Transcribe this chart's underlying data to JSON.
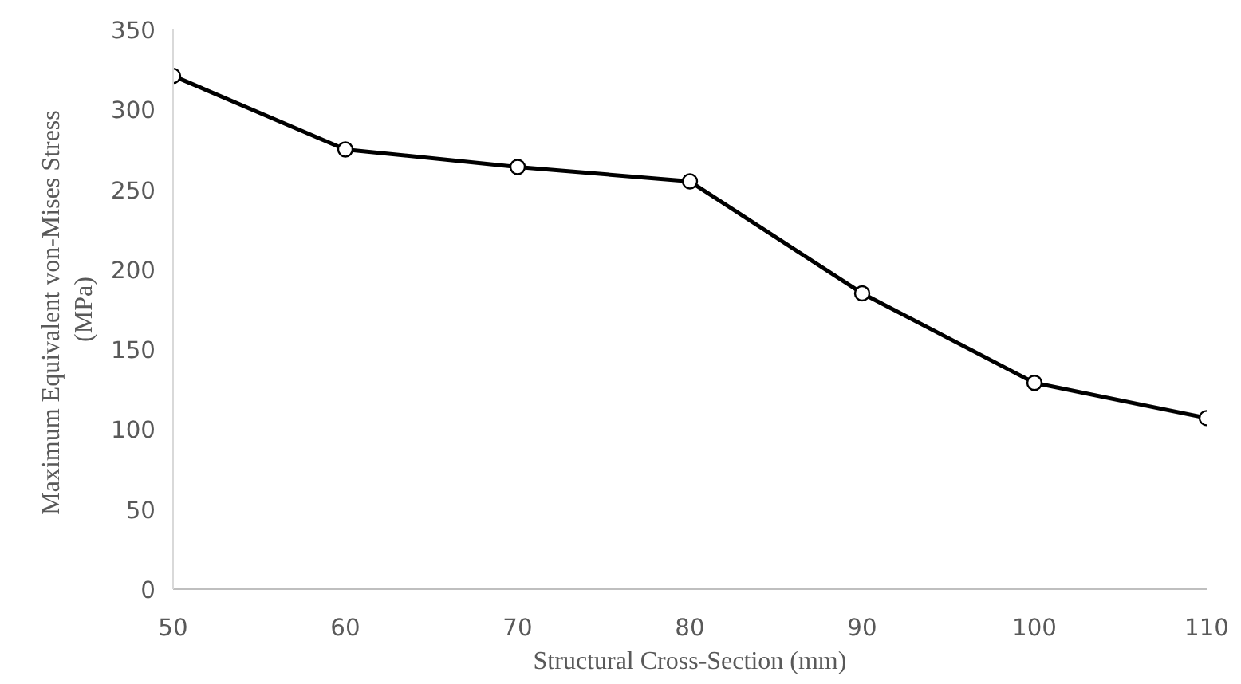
{
  "chart_data": {
    "type": "line",
    "xlabel": "Structural Cross-Section (mm)",
    "ylabel": "Maximum Equivalent  von-Mises Stress\n(MPa)",
    "x": [
      50,
      60,
      70,
      80,
      90,
      100,
      110
    ],
    "series": [
      {
        "color": "#000000",
        "values": [
          321,
          275,
          264,
          255,
          185,
          129,
          107
        ]
      }
    ],
    "xlim": [
      50,
      110
    ],
    "xticks": [
      50,
      60,
      70,
      80,
      90,
      100,
      110
    ],
    "ylim": [
      0,
      350
    ],
    "yticks": [
      0,
      50,
      100,
      150,
      200,
      250,
      300,
      350
    ],
    "grid": false,
    "marker": "circle",
    "line_style": "solid"
  }
}
